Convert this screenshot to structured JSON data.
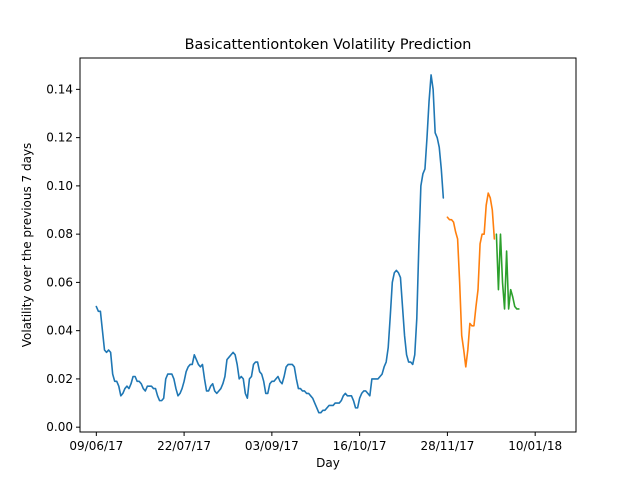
{
  "chart_data": {
    "type": "line",
    "title": "Basicattentiontoken Volatility Prediction",
    "xlabel": "Day",
    "ylabel": "Volatility over the previous 7 days",
    "x_unit": "day index from 09/06/17",
    "xlim": [
      -8,
      235
    ],
    "ylim": [
      -0.002,
      0.153
    ],
    "grid": false,
    "legend": "none",
    "x_ticks": [
      {
        "value": 0,
        "label": "09/06/17"
      },
      {
        "value": 43,
        "label": "22/07/17"
      },
      {
        "value": 86,
        "label": "03/09/17"
      },
      {
        "value": 129,
        "label": "16/10/17"
      },
      {
        "value": 172,
        "label": "28/11/17"
      },
      {
        "value": 215,
        "label": "10/01/18"
      }
    ],
    "y_ticks": [
      {
        "value": 0.0,
        "label": "0.00"
      },
      {
        "value": 0.02,
        "label": "0.02"
      },
      {
        "value": 0.04,
        "label": "0.04"
      },
      {
        "value": 0.06,
        "label": "0.06"
      },
      {
        "value": 0.08,
        "label": "0.08"
      },
      {
        "value": 0.1,
        "label": "0.10"
      },
      {
        "value": 0.12,
        "label": "0.12"
      },
      {
        "value": 0.14,
        "label": "0.14"
      }
    ],
    "series": [
      {
        "color": "#1f77b4",
        "points": [
          [
            0,
            0.05
          ],
          [
            1,
            0.048
          ],
          [
            2,
            0.048
          ],
          [
            3,
            0.04
          ],
          [
            4,
            0.032
          ],
          [
            5,
            0.031
          ],
          [
            6,
            0.032
          ],
          [
            7,
            0.031
          ],
          [
            8,
            0.022
          ],
          [
            9,
            0.019
          ],
          [
            10,
            0.019
          ],
          [
            11,
            0.017
          ],
          [
            12,
            0.013
          ],
          [
            13,
            0.014
          ],
          [
            14,
            0.016
          ],
          [
            15,
            0.017
          ],
          [
            16,
            0.016
          ],
          [
            17,
            0.018
          ],
          [
            18,
            0.021
          ],
          [
            19,
            0.021
          ],
          [
            20,
            0.019
          ],
          [
            21,
            0.019
          ],
          [
            22,
            0.018
          ],
          [
            23,
            0.016
          ],
          [
            24,
            0.015
          ],
          [
            25,
            0.017
          ],
          [
            26,
            0.017
          ],
          [
            27,
            0.017
          ],
          [
            28,
            0.016
          ],
          [
            29,
            0.016
          ],
          [
            30,
            0.013
          ],
          [
            31,
            0.011
          ],
          [
            32,
            0.011
          ],
          [
            33,
            0.012
          ],
          [
            34,
            0.02
          ],
          [
            35,
            0.022
          ],
          [
            36,
            0.022
          ],
          [
            37,
            0.022
          ],
          [
            38,
            0.02
          ],
          [
            39,
            0.016
          ],
          [
            40,
            0.013
          ],
          [
            41,
            0.014
          ],
          [
            42,
            0.016
          ],
          [
            43,
            0.019
          ],
          [
            44,
            0.023
          ],
          [
            45,
            0.025
          ],
          [
            46,
            0.026
          ],
          [
            47,
            0.026
          ],
          [
            48,
            0.03
          ],
          [
            49,
            0.028
          ],
          [
            50,
            0.026
          ],
          [
            51,
            0.025
          ],
          [
            52,
            0.026
          ],
          [
            53,
            0.02
          ],
          [
            54,
            0.015
          ],
          [
            55,
            0.015
          ],
          [
            56,
            0.017
          ],
          [
            57,
            0.018
          ],
          [
            58,
            0.015
          ],
          [
            59,
            0.014
          ],
          [
            60,
            0.015
          ],
          [
            61,
            0.016
          ],
          [
            62,
            0.018
          ],
          [
            63,
            0.021
          ],
          [
            64,
            0.028
          ],
          [
            65,
            0.029
          ],
          [
            66,
            0.03
          ],
          [
            67,
            0.031
          ],
          [
            68,
            0.03
          ],
          [
            69,
            0.026
          ],
          [
            70,
            0.02
          ],
          [
            71,
            0.021
          ],
          [
            72,
            0.02
          ],
          [
            73,
            0.014
          ],
          [
            74,
            0.012
          ],
          [
            75,
            0.02
          ],
          [
            76,
            0.021
          ],
          [
            77,
            0.026
          ],
          [
            78,
            0.027
          ],
          [
            79,
            0.027
          ],
          [
            80,
            0.023
          ],
          [
            81,
            0.022
          ],
          [
            82,
            0.019
          ],
          [
            83,
            0.014
          ],
          [
            84,
            0.014
          ],
          [
            85,
            0.018
          ],
          [
            86,
            0.019
          ],
          [
            87,
            0.019
          ],
          [
            88,
            0.02
          ],
          [
            89,
            0.021
          ],
          [
            90,
            0.019
          ],
          [
            91,
            0.018
          ],
          [
            92,
            0.021
          ],
          [
            93,
            0.025
          ],
          [
            94,
            0.026
          ],
          [
            95,
            0.026
          ],
          [
            96,
            0.026
          ],
          [
            97,
            0.025
          ],
          [
            98,
            0.02
          ],
          [
            99,
            0.016
          ],
          [
            100,
            0.016
          ],
          [
            101,
            0.015
          ],
          [
            102,
            0.015
          ],
          [
            103,
            0.014
          ],
          [
            104,
            0.014
          ],
          [
            105,
            0.013
          ],
          [
            106,
            0.012
          ],
          [
            107,
            0.01
          ],
          [
            108,
            0.008
          ],
          [
            109,
            0.006
          ],
          [
            110,
            0.006
          ],
          [
            111,
            0.007
          ],
          [
            112,
            0.007
          ],
          [
            113,
            0.008
          ],
          [
            114,
            0.009
          ],
          [
            115,
            0.009
          ],
          [
            116,
            0.009
          ],
          [
            117,
            0.01
          ],
          [
            118,
            0.01
          ],
          [
            119,
            0.01
          ],
          [
            120,
            0.011
          ],
          [
            121,
            0.013
          ],
          [
            122,
            0.014
          ],
          [
            123,
            0.013
          ],
          [
            124,
            0.013
          ],
          [
            125,
            0.013
          ],
          [
            126,
            0.011
          ],
          [
            127,
            0.008
          ],
          [
            128,
            0.008
          ],
          [
            129,
            0.012
          ],
          [
            130,
            0.014
          ],
          [
            131,
            0.015
          ],
          [
            132,
            0.015
          ],
          [
            133,
            0.014
          ],
          [
            134,
            0.013
          ],
          [
            135,
            0.02
          ],
          [
            136,
            0.02
          ],
          [
            137,
            0.02
          ],
          [
            138,
            0.02
          ],
          [
            139,
            0.021
          ],
          [
            140,
            0.022
          ],
          [
            141,
            0.025
          ],
          [
            142,
            0.027
          ],
          [
            143,
            0.033
          ],
          [
            144,
            0.046
          ],
          [
            145,
            0.06
          ],
          [
            146,
            0.064
          ],
          [
            147,
            0.065
          ],
          [
            148,
            0.064
          ],
          [
            149,
            0.062
          ],
          [
            150,
            0.05
          ],
          [
            151,
            0.038
          ],
          [
            152,
            0.03
          ],
          [
            153,
            0.027
          ],
          [
            154,
            0.027
          ],
          [
            155,
            0.026
          ],
          [
            156,
            0.03
          ],
          [
            157,
            0.045
          ],
          [
            158,
            0.075
          ],
          [
            159,
            0.1
          ],
          [
            160,
            0.105
          ],
          [
            161,
            0.107
          ],
          [
            162,
            0.12
          ],
          [
            163,
            0.135
          ],
          [
            164,
            0.146
          ],
          [
            165,
            0.14
          ],
          [
            166,
            0.122
          ],
          [
            167,
            0.12
          ],
          [
            168,
            0.116
          ],
          [
            169,
            0.107
          ],
          [
            170,
            0.095
          ]
        ]
      },
      {
        "color": "#ff7f0e",
        "points": [
          [
            172,
            0.087
          ],
          [
            173,
            0.086
          ],
          [
            174,
            0.086
          ],
          [
            175,
            0.085
          ],
          [
            176,
            0.081
          ],
          [
            177,
            0.078
          ],
          [
            178,
            0.06
          ],
          [
            179,
            0.038
          ],
          [
            180,
            0.032
          ],
          [
            181,
            0.025
          ],
          [
            182,
            0.032
          ],
          [
            183,
            0.043
          ],
          [
            184,
            0.042
          ],
          [
            185,
            0.042
          ],
          [
            186,
            0.05
          ],
          [
            187,
            0.057
          ],
          [
            188,
            0.076
          ],
          [
            189,
            0.08
          ],
          [
            190,
            0.08
          ],
          [
            191,
            0.092
          ],
          [
            192,
            0.097
          ],
          [
            193,
            0.095
          ],
          [
            194,
            0.09
          ],
          [
            195,
            0.078
          ]
        ]
      },
      {
        "color": "#2ca02c",
        "points": [
          [
            196,
            0.08
          ],
          [
            197,
            0.057
          ],
          [
            198,
            0.08
          ],
          [
            199,
            0.06
          ],
          [
            200,
            0.049
          ],
          [
            201,
            0.073
          ],
          [
            202,
            0.049
          ],
          [
            203,
            0.057
          ],
          [
            204,
            0.054
          ],
          [
            205,
            0.05
          ],
          [
            206,
            0.049
          ],
          [
            207,
            0.049
          ]
        ]
      }
    ]
  }
}
